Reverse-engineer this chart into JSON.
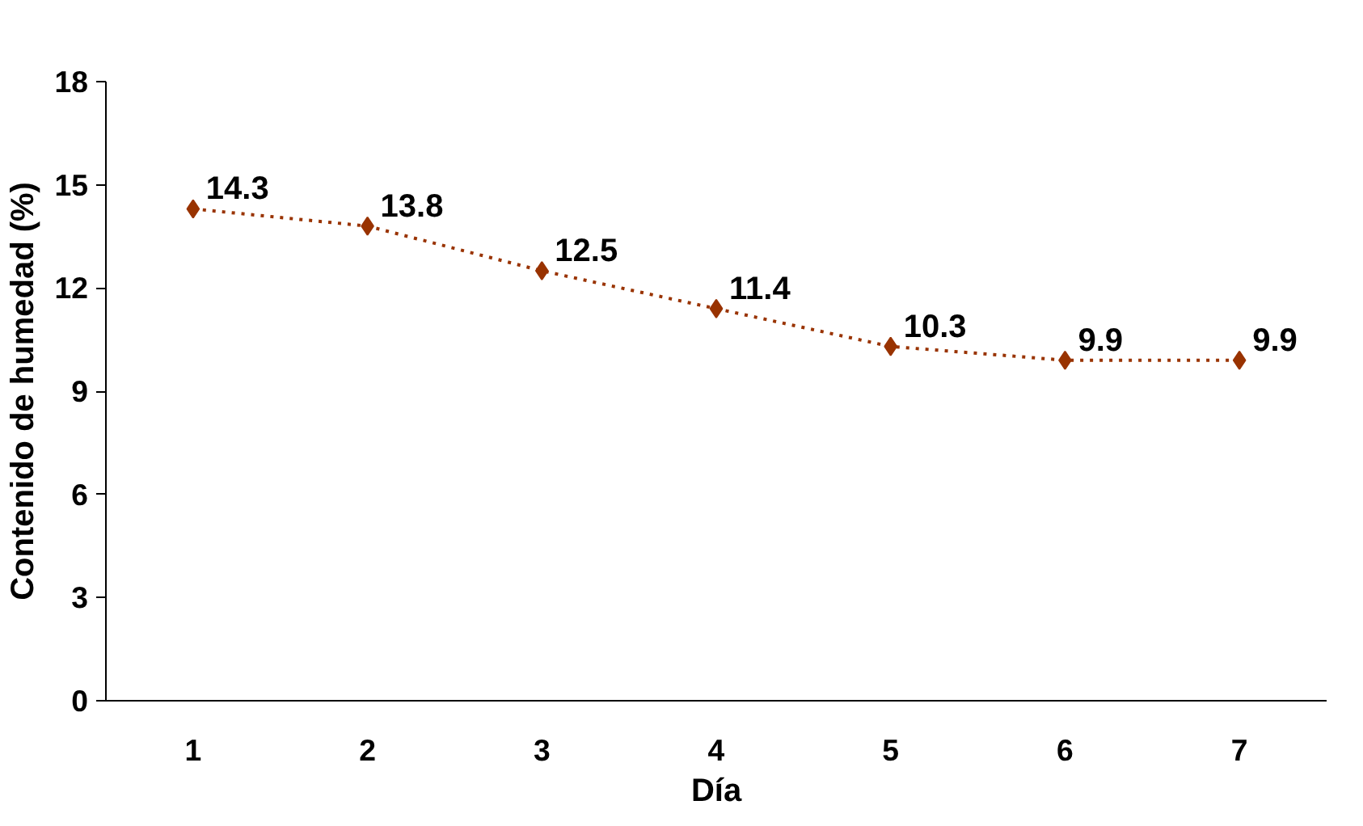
{
  "chart_data": {
    "type": "line",
    "xlabel": "Día",
    "ylabel": "Contenido de humedad (%)",
    "categories": [
      "1",
      "2",
      "3",
      "4",
      "5",
      "6",
      "7"
    ],
    "series": [
      {
        "color": "#993300",
        "values": [
          14.3,
          13.8,
          12.5,
          11.4,
          10.3,
          9.9,
          9.9
        ]
      }
    ],
    "ylim": [
      0,
      18
    ],
    "yticks": [
      0,
      3,
      6,
      9,
      12,
      15,
      18
    ],
    "grid": false,
    "marker": "diamond",
    "line_style": "dotted",
    "data_labels": true
  }
}
